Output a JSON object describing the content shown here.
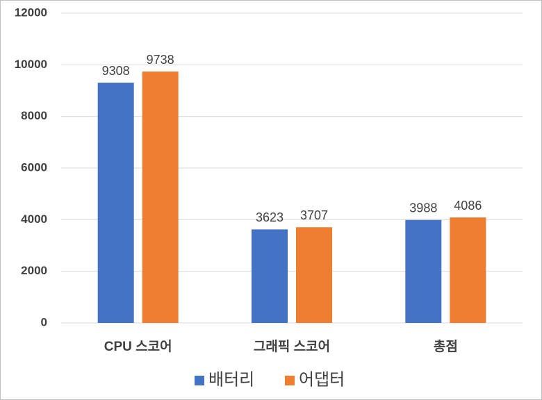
{
  "chart_data": {
    "type": "bar",
    "categories": [
      "CPU 스코어",
      "그래픽 스코어",
      "총점"
    ],
    "series": [
      {
        "name": "배터리",
        "color": "#4472c4",
        "values": [
          9308,
          3623,
          3988
        ]
      },
      {
        "name": "어댑터",
        "color": "#ed7d31",
        "values": [
          9738,
          3707,
          4086
        ]
      }
    ],
    "ylim": [
      0,
      12000
    ],
    "yticks": [
      0,
      2000,
      4000,
      6000,
      8000,
      10000,
      12000
    ],
    "grid": true,
    "legend": "bottom"
  }
}
